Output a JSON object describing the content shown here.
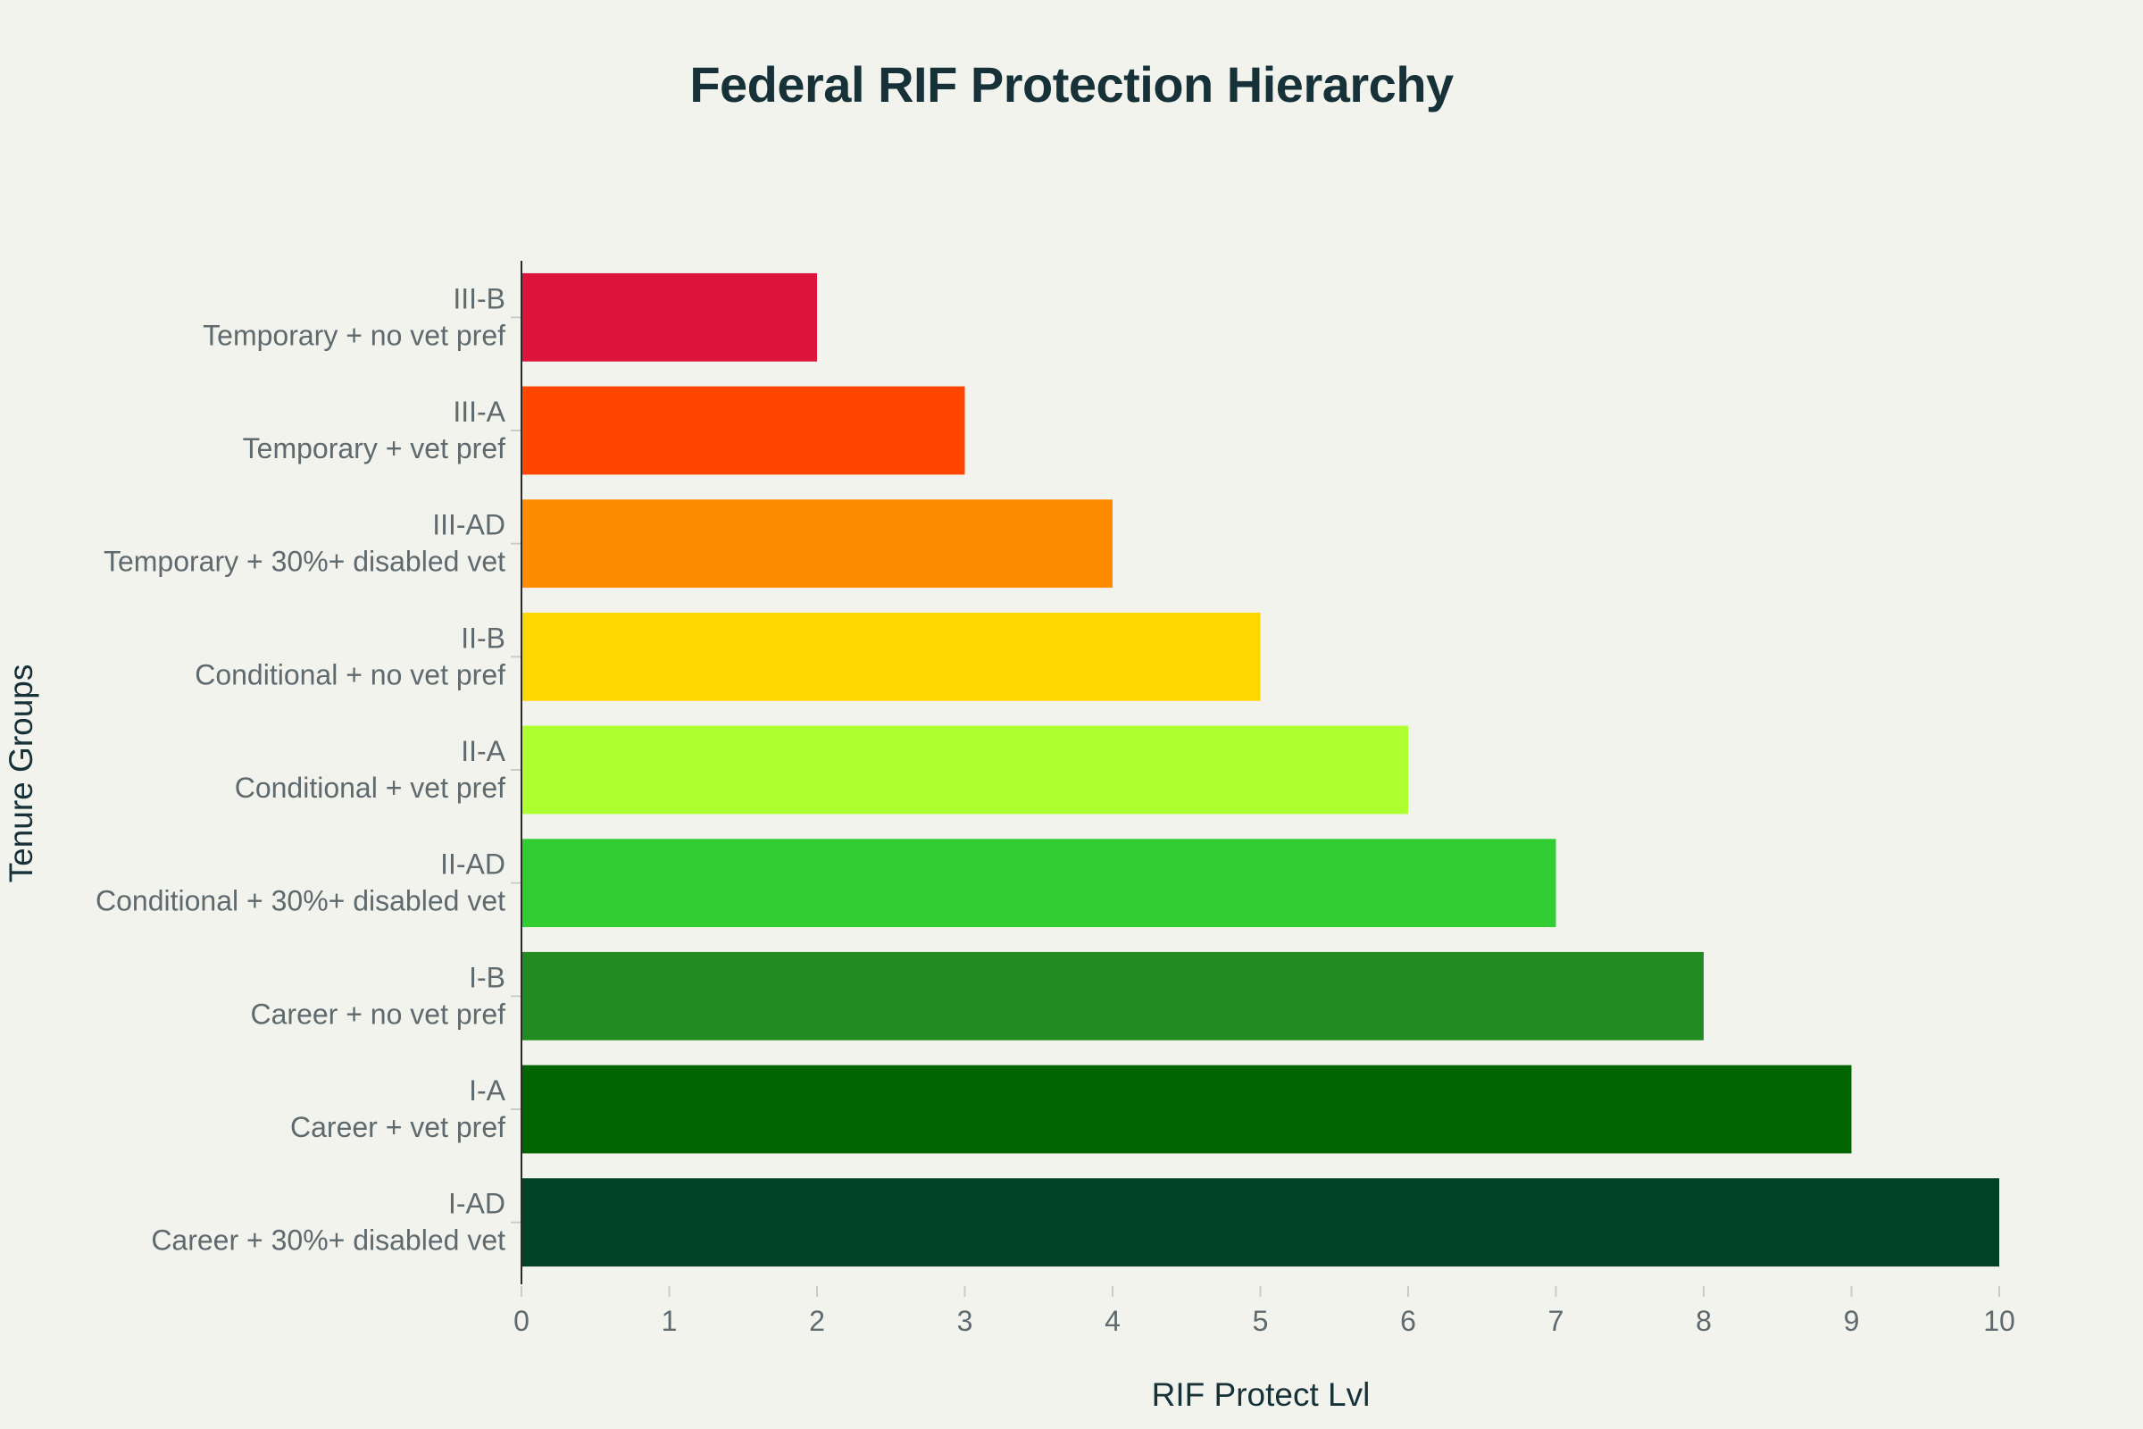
{
  "chart_data": {
    "type": "bar",
    "orientation": "horizontal",
    "title": "Federal RIF Protection Hierarchy",
    "xlabel": "RIF Protect Lvl",
    "ylabel": "Tenure Groups",
    "xlim": [
      0,
      10
    ],
    "xticks": [
      0,
      1,
      2,
      3,
      4,
      5,
      6,
      7,
      8,
      9,
      10
    ],
    "grid": false,
    "legend": "none",
    "bars": [
      {
        "code": "III-B",
        "desc": "Temporary + no vet pref",
        "value": 2,
        "color": "#dc143c"
      },
      {
        "code": "III-A",
        "desc": "Temporary + vet pref",
        "value": 3,
        "color": "#ff4500"
      },
      {
        "code": "III-AD",
        "desc": "Temporary + 30%+ disabled vet",
        "value": 4,
        "color": "#ff8c00"
      },
      {
        "code": "II-B",
        "desc": "Conditional + no vet pref",
        "value": 5,
        "color": "#ffd700"
      },
      {
        "code": "II-A",
        "desc": "Conditional + vet pref",
        "value": 6,
        "color": "#adff2f"
      },
      {
        "code": "II-AD",
        "desc": "Conditional + 30%+ disabled vet",
        "value": 7,
        "color": "#32cd32"
      },
      {
        "code": "I-B",
        "desc": "Career + no vet pref",
        "value": 8,
        "color": "#228b22"
      },
      {
        "code": "I-A",
        "desc": "Career + vet pref",
        "value": 9,
        "color": "#006400"
      },
      {
        "code": "I-AD",
        "desc": "Career + 30%+ disabled vet",
        "value": 10,
        "color": "#004225"
      }
    ]
  }
}
